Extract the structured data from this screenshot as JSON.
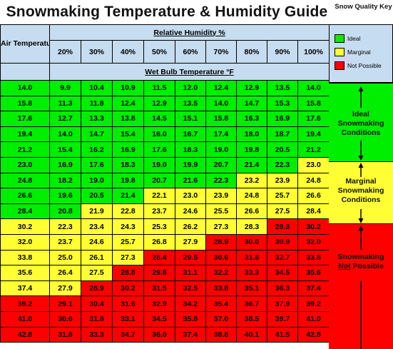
{
  "title": "Snowmaking Temperature & Humidity Guide",
  "key_title": "Snow Quality Key",
  "air_temp_label": "Air Temperature °F",
  "rh_label": "Relative Humidity %",
  "wb_label": "Wet Bulb Temperature °F",
  "humidity_levels": [
    "20%",
    "30%",
    "40%",
    "50%",
    "60%",
    "70%",
    "80%",
    "90%",
    "100%"
  ],
  "key": [
    {
      "label": "Ideal",
      "color": "#00ee00"
    },
    {
      "label": "Marginal",
      "color": "#ffff33"
    },
    {
      "label": "Not Possible",
      "color": "#ff0000"
    }
  ],
  "zones": {
    "ideal": "Ideal Snowmaking Conditions",
    "marginal": "Marginal Snowmaking Conditions",
    "not_possible_prefix": "Snowmaking",
    "not_possible_underlined": "Not",
    "not_possible_suffix": "Possible"
  },
  "colors": {
    "G": "#00ee00",
    "Y": "#ffff33",
    "R": "#ff0000"
  },
  "rows": [
    {
      "temp": "14.0",
      "values": [
        "9.9",
        "10.4",
        "10.9",
        "11.5",
        "12.0",
        "12.4",
        "12.9",
        "13.5",
        "14.0"
      ],
      "quality": [
        "G",
        "G",
        "G",
        "G",
        "G",
        "G",
        "G",
        "G",
        "G"
      ]
    },
    {
      "temp": "15.8",
      "values": [
        "11.3",
        "11.8",
        "12.4",
        "12.9",
        "13.5",
        "14.0",
        "14.7",
        "15.3",
        "15.8"
      ],
      "quality": [
        "G",
        "G",
        "G",
        "G",
        "G",
        "G",
        "G",
        "G",
        "G"
      ]
    },
    {
      "temp": "17.6",
      "values": [
        "12.7",
        "13.3",
        "13.8",
        "14.5",
        "15.1",
        "15.8",
        "16.3",
        "16.9",
        "17.6"
      ],
      "quality": [
        "G",
        "G",
        "G",
        "G",
        "G",
        "G",
        "G",
        "G",
        "G"
      ]
    },
    {
      "temp": "19.4",
      "values": [
        "14.0",
        "14.7",
        "15.4",
        "16.0",
        "16.7",
        "17.4",
        "18.0",
        "18.7",
        "19.4"
      ],
      "quality": [
        "G",
        "G",
        "G",
        "G",
        "G",
        "G",
        "G",
        "G",
        "G"
      ]
    },
    {
      "temp": "21.2",
      "values": [
        "15.4",
        "16.2",
        "16.9",
        "17.6",
        "18.3",
        "19.0",
        "19.8",
        "20.5",
        "21.2"
      ],
      "quality": [
        "G",
        "G",
        "G",
        "G",
        "G",
        "G",
        "G",
        "G",
        "G"
      ]
    },
    {
      "temp": "23.0",
      "values": [
        "16.9",
        "17.6",
        "18.3",
        "19.0",
        "19.9",
        "20.7",
        "21.4",
        "22.3",
        "23.0"
      ],
      "quality": [
        "G",
        "G",
        "G",
        "G",
        "G",
        "G",
        "G",
        "G",
        "Y"
      ]
    },
    {
      "temp": "24.8",
      "values": [
        "18.2",
        "19.0",
        "19.8",
        "20.7",
        "21.6",
        "22.3",
        "23.2",
        "23.9",
        "24.8"
      ],
      "quality": [
        "G",
        "G",
        "G",
        "G",
        "G",
        "G",
        "Y",
        "Y",
        "Y"
      ]
    },
    {
      "temp": "26.6",
      "values": [
        "19.6",
        "20.5",
        "21.4",
        "22.1",
        "23.0",
        "23.9",
        "24.8",
        "25.7",
        "26.6"
      ],
      "quality": [
        "G",
        "G",
        "G",
        "Y",
        "Y",
        "Y",
        "Y",
        "Y",
        "Y"
      ]
    },
    {
      "temp": "28.4",
      "values": [
        "20.8",
        "21.9",
        "22.8",
        "23.7",
        "24.6",
        "25.5",
        "26.6",
        "27.5",
        "28.4"
      ],
      "quality": [
        "G",
        "Y",
        "Y",
        "Y",
        "Y",
        "Y",
        "Y",
        "Y",
        "Y"
      ]
    },
    {
      "temp": "30.2",
      "values": [
        "22.3",
        "23.4",
        "24.3",
        "25.3",
        "26.2",
        "27.3",
        "28.3",
        "29.3",
        "30.2"
      ],
      "quality": [
        "Y",
        "Y",
        "Y",
        "Y",
        "Y",
        "Y",
        "Y",
        "R",
        "R"
      ]
    },
    {
      "temp": "32.0",
      "values": [
        "23.7",
        "24.6",
        "25.7",
        "26.8",
        "27.9",
        "28.9",
        "30.0",
        "30.9",
        "32.0"
      ],
      "quality": [
        "Y",
        "Y",
        "Y",
        "Y",
        "Y",
        "R",
        "R",
        "R",
        "R"
      ]
    },
    {
      "temp": "33.8",
      "values": [
        "25.0",
        "26.1",
        "27.3",
        "28.4",
        "29.5",
        "30.6",
        "31.6",
        "32.7",
        "33.8"
      ],
      "quality": [
        "Y",
        "Y",
        "Y",
        "R",
        "R",
        "R",
        "R",
        "R",
        "R"
      ]
    },
    {
      "temp": "35.6",
      "values": [
        "26.4",
        "27.5",
        "28.8",
        "29.8",
        "31.1",
        "32.2",
        "33.3",
        "34.5",
        "35.6"
      ],
      "quality": [
        "Y",
        "Y",
        "R",
        "R",
        "R",
        "R",
        "R",
        "R",
        "R"
      ]
    },
    {
      "temp": "37.4",
      "values": [
        "27.9",
        "28.9",
        "30.2",
        "31.5",
        "32.5",
        "33.8",
        "35.1",
        "36.3",
        "37.4"
      ],
      "quality": [
        "Y",
        "R",
        "R",
        "R",
        "R",
        "R",
        "R",
        "R",
        "R"
      ]
    },
    {
      "temp": "39.2",
      "values": [
        "29.1",
        "30.4",
        "31.6",
        "32.9",
        "34.2",
        "35.4",
        "36.7",
        "37.9",
        "39.2"
      ],
      "quality": [
        "R",
        "R",
        "R",
        "R",
        "R",
        "R",
        "R",
        "R",
        "R"
      ]
    },
    {
      "temp": "41.0",
      "values": [
        "30.6",
        "31.8",
        "33.1",
        "34.5",
        "35.8",
        "37.0",
        "38.5",
        "39.7",
        "41.0"
      ],
      "quality": [
        "R",
        "R",
        "R",
        "R",
        "R",
        "R",
        "R",
        "R",
        "R"
      ]
    },
    {
      "temp": "42.8",
      "values": [
        "31.8",
        "33.3",
        "34.7",
        "36.0",
        "37.4",
        "38.8",
        "40.1",
        "41.5",
        "42.8"
      ],
      "quality": [
        "R",
        "R",
        "R",
        "R",
        "R",
        "R",
        "R",
        "R",
        "R"
      ]
    }
  ]
}
